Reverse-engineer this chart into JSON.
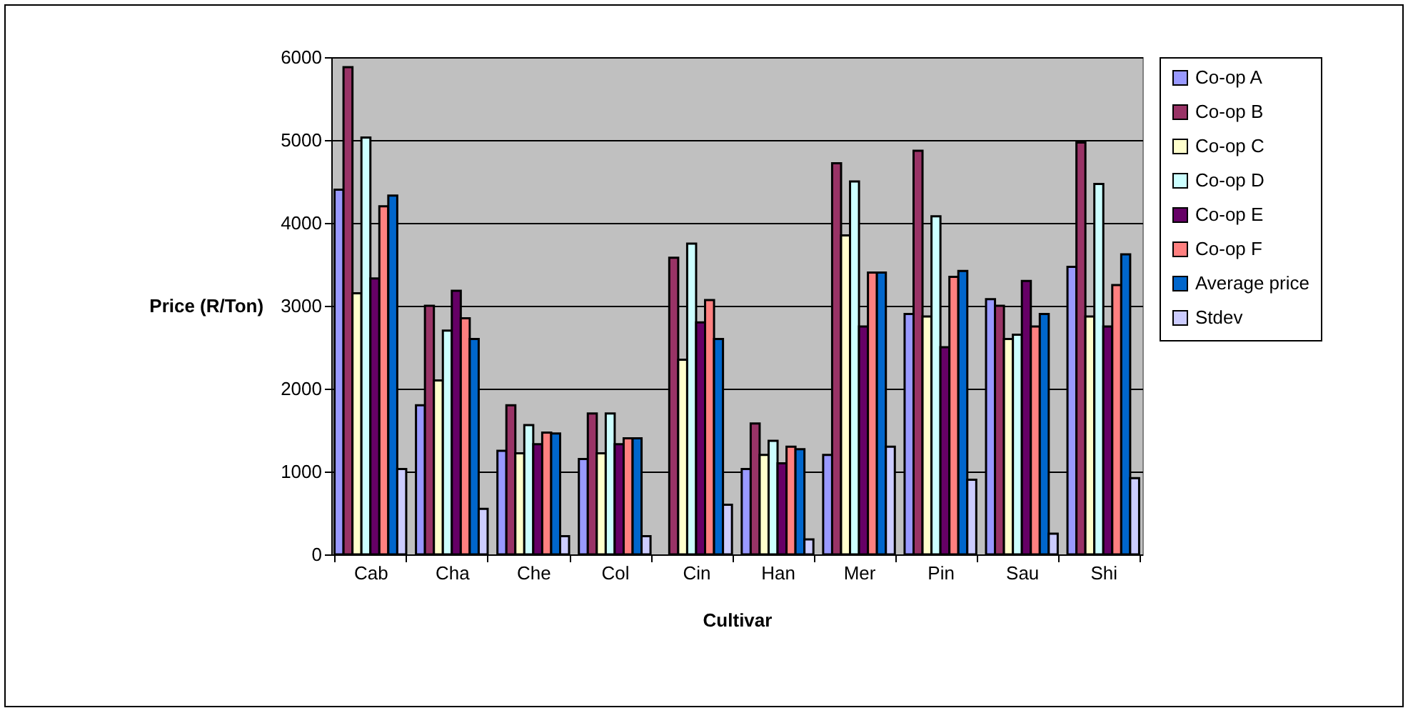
{
  "chart_data": {
    "type": "bar",
    "xlabel": "Cultivar",
    "ylabel": "Price (R/Ton)",
    "categories": [
      "Cab",
      "Cha",
      "Che",
      "Col",
      "Cin",
      "Han",
      "Mer",
      "Pin",
      "Sau",
      "Shi"
    ],
    "ylim": [
      0,
      6000
    ],
    "yticks": [
      0,
      1000,
      2000,
      3000,
      4000,
      5000,
      6000
    ],
    "grid": "y",
    "legend": "right",
    "series": [
      {
        "name": "Co-op A",
        "color": "#9999ff",
        "values": [
          4400,
          1800,
          1250,
          1150,
          null,
          1030,
          1200,
          2900,
          3080,
          3470
        ]
      },
      {
        "name": "Co-op B",
        "color": "#993366",
        "values": [
          5880,
          3000,
          1800,
          1700,
          3580,
          1580,
          4720,
          4870,
          3000,
          4970
        ]
      },
      {
        "name": "Co-op C",
        "color": "#ffffcc",
        "values": [
          3150,
          2100,
          1220,
          1220,
          2350,
          1200,
          3850,
          2870,
          2600,
          2870
        ]
      },
      {
        "name": "Co-op D",
        "color": "#ccffff",
        "values": [
          5030,
          2700,
          1560,
          1700,
          3750,
          1370,
          4500,
          4080,
          2650,
          4470
        ]
      },
      {
        "name": "Co-op E",
        "color": "#660066",
        "values": [
          3330,
          3180,
          1330,
          1330,
          2800,
          1100,
          2750,
          2500,
          3300,
          2750
        ]
      },
      {
        "name": "Co-op F",
        "color": "#ff8080",
        "values": [
          4200,
          2850,
          1470,
          1400,
          3070,
          1300,
          3400,
          3350,
          2750,
          3250
        ]
      },
      {
        "name": "Average price",
        "color": "#0066cc",
        "values": [
          4330,
          2600,
          1460,
          1400,
          2600,
          1270,
          3400,
          3420,
          2900,
          3620
        ]
      },
      {
        "name": "Stdev",
        "color": "#ccccff",
        "values": [
          1030,
          550,
          220,
          220,
          600,
          180,
          1300,
          900,
          250,
          920
        ]
      }
    ]
  }
}
